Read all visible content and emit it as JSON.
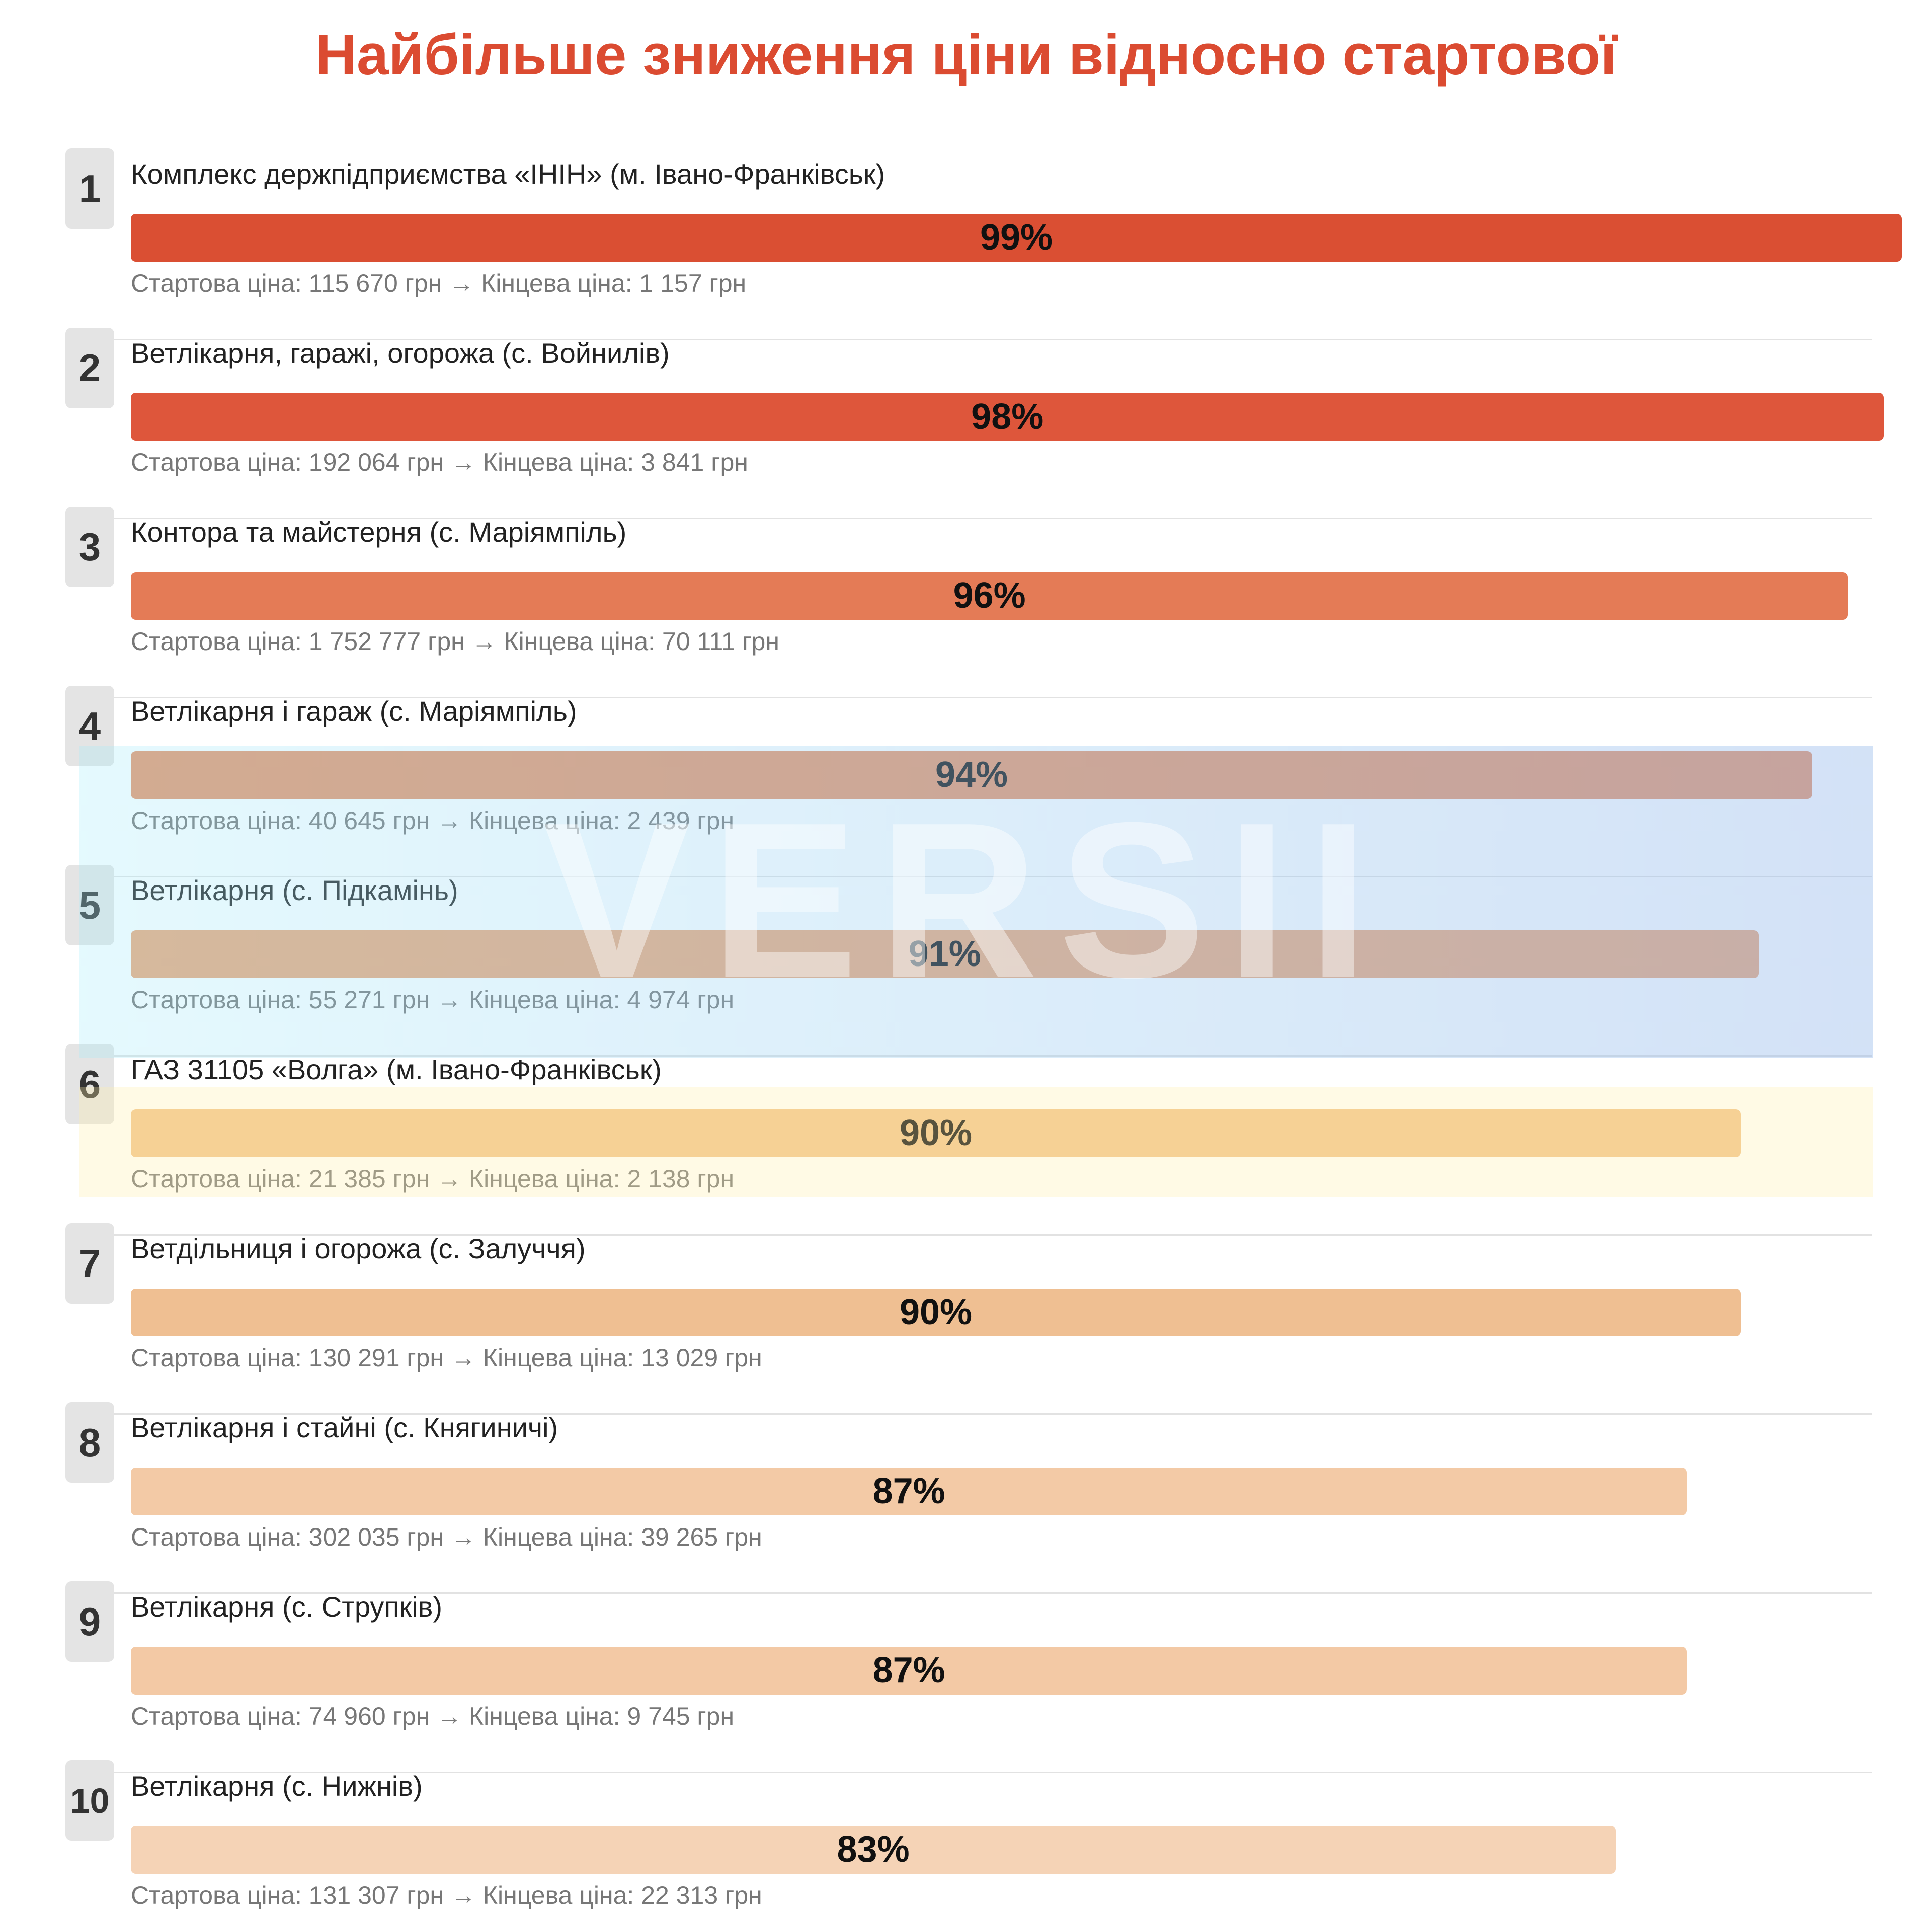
{
  "title": "Найбільше зниження ціни відносно стартової",
  "watermark": "VERSII",
  "chart_data": {
    "type": "bar",
    "orientation": "horizontal",
    "title": "Найбільше зниження ціни відносно стартової",
    "xlim": [
      0,
      99
    ],
    "value_unit": "%",
    "start_label": "Стартова ціна:",
    "end_label": "Кінцева ціна:",
    "currency": "грн",
    "arrow": "→",
    "items": [
      {
        "rank": "1",
        "name": "Комплекс держпідприємства «ІНІН» (м. Івано-Франківськ)",
        "value": 99,
        "value_label": "99%",
        "start_price": "115 670",
        "end_price": "1 157",
        "color": "#da4f33"
      },
      {
        "rank": "2",
        "name": "Ветлікарня, гаражі, огорожа (с. Войнилів)",
        "value": 98,
        "value_label": "98%",
        "start_price": "192 064",
        "end_price": "3 841",
        "color": "#de563b"
      },
      {
        "rank": "3",
        "name": "Контора та майстерня (с. Маріямпіль)",
        "value": 96,
        "value_label": "96%",
        "start_price": "1 752 777",
        "end_price": "70 111",
        "color": "#e47b56"
      },
      {
        "rank": "4",
        "name": "Ветлікарня і гараж (с. Маріямпіль)",
        "value": 94,
        "value_label": "94%",
        "start_price": "40 645",
        "end_price": "2 439",
        "color": "#e79368"
      },
      {
        "rank": "5",
        "name": "Ветлікарня (с. Підкамінь)",
        "value": 91,
        "value_label": "91%",
        "start_price": "55 271",
        "end_price": "4 974",
        "color": "#eba678"
      },
      {
        "rank": "6",
        "name": "ГАЗ 31105 «Волга» (м. Івано-Франківськ)",
        "value": 90,
        "value_label": "90%",
        "start_price": "21 385",
        "end_price": "2 138",
        "color": "#f2c48d"
      },
      {
        "rank": "7",
        "name": "Ветдільниця і огорожа (с. Залуччя)",
        "value": 90,
        "value_label": "90%",
        "start_price": "130 291",
        "end_price": "13 029",
        "color": "#efbf92"
      },
      {
        "rank": "8",
        "name": "Ветлікарня і стайні (с. Княгиничі)",
        "value": 87,
        "value_label": "87%",
        "start_price": "302 035",
        "end_price": "39 265",
        "color": "#f3caa6"
      },
      {
        "rank": "9",
        "name": "Ветлікарня (с. Струпків)",
        "value": 87,
        "value_label": "87%",
        "start_price": "74 960",
        "end_price": "9 745",
        "color": "#f3c9a5"
      },
      {
        "rank": "10",
        "name": "Ветлікарня (с. Нижнів)",
        "value": 83,
        "value_label": "83%",
        "start_price": "131 307",
        "end_price": "22 313",
        "color": "#f5d3b6"
      }
    ]
  }
}
